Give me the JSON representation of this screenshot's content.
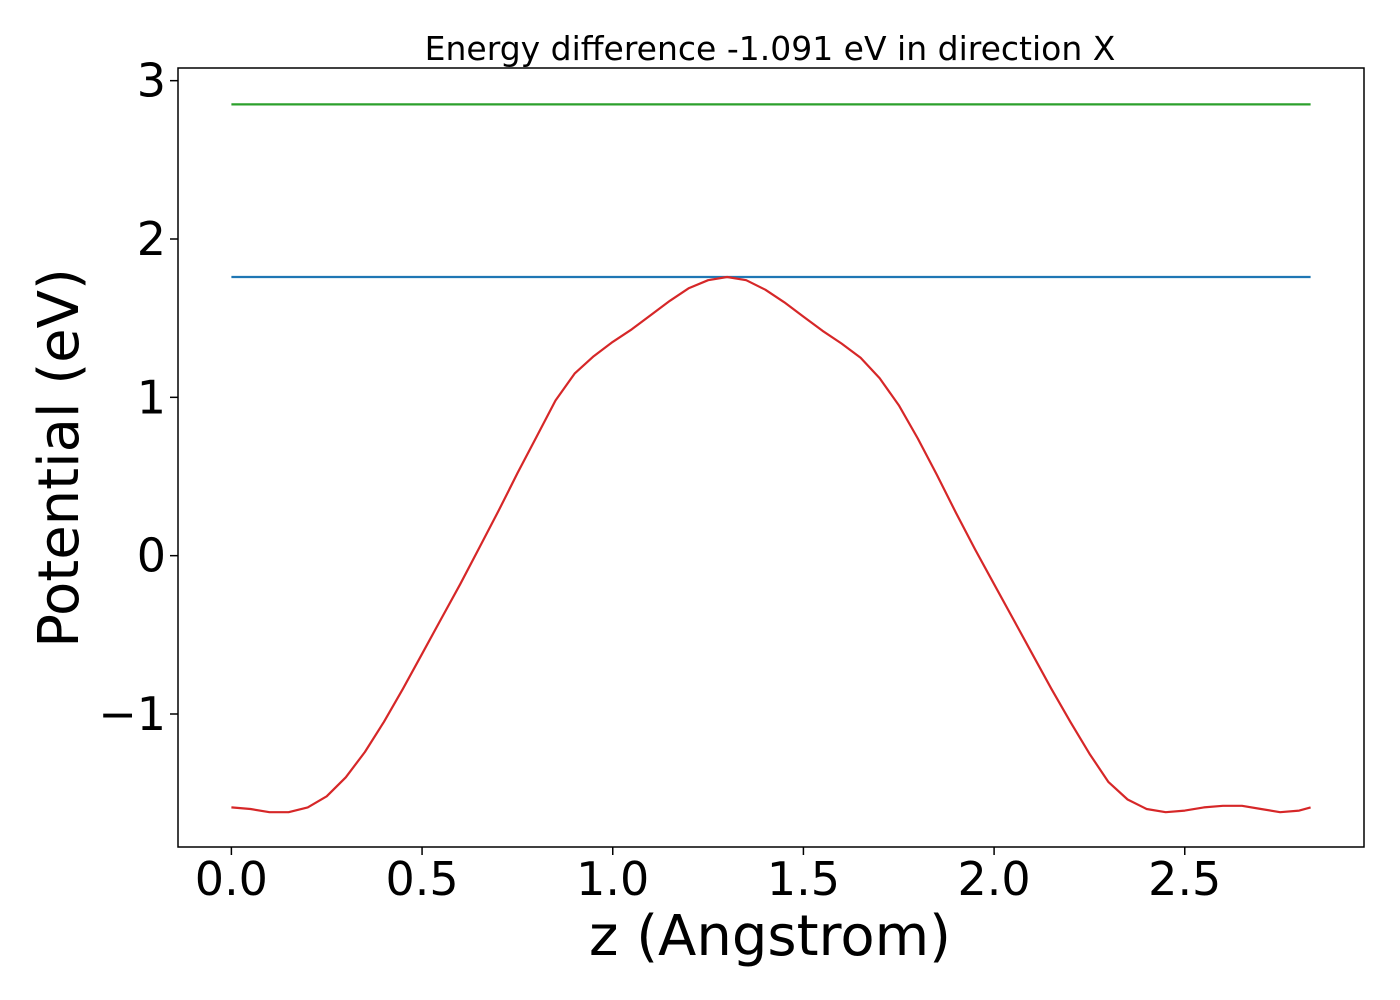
{
  "chart_data": {
    "type": "line",
    "title": "Energy difference -1.091 eV in direction X",
    "xlabel": "z (Angstrom)",
    "ylabel": "Potential (eV)",
    "xlim": [
      -0.14,
      2.97
    ],
    "ylim": [
      -1.84,
      3.08
    ],
    "xticks": [
      0.0,
      0.5,
      1.0,
      1.5,
      2.0,
      2.5
    ],
    "xtick_labels": [
      "0.0",
      "0.5",
      "1.0",
      "1.5",
      "2.0",
      "2.5"
    ],
    "yticks": [
      -1,
      0,
      1,
      2,
      3
    ],
    "ytick_labels": [
      "−1",
      "0",
      "1",
      "2",
      "3"
    ],
    "grid": false,
    "legend": "none",
    "series": [
      {
        "color": "#d62728",
        "x": [
          0.0,
          0.05,
          0.1,
          0.15,
          0.2,
          0.25,
          0.3,
          0.35,
          0.4,
          0.45,
          0.5,
          0.55,
          0.6,
          0.65,
          0.7,
          0.75,
          0.8,
          0.85,
          0.9,
          0.95,
          1.0,
          1.05,
          1.1,
          1.15,
          1.2,
          1.25,
          1.3,
          1.35,
          1.4,
          1.45,
          1.5,
          1.55,
          1.6,
          1.65,
          1.7,
          1.75,
          1.8,
          1.85,
          1.9,
          1.95,
          2.0,
          2.05,
          2.1,
          2.15,
          2.2,
          2.25,
          2.3,
          2.35,
          2.4,
          2.45,
          2.5,
          2.55,
          2.6,
          2.65,
          2.7,
          2.75,
          2.8,
          2.83
        ],
        "values": [
          -1.59,
          -1.6,
          -1.62,
          -1.62,
          -1.59,
          -1.52,
          -1.4,
          -1.24,
          -1.05,
          -0.84,
          -0.62,
          -0.4,
          -0.18,
          0.05,
          0.28,
          0.52,
          0.75,
          0.98,
          1.15,
          1.26,
          1.35,
          1.43,
          1.52,
          1.61,
          1.69,
          1.74,
          1.76,
          1.74,
          1.68,
          1.6,
          1.51,
          1.42,
          1.34,
          1.25,
          1.12,
          0.95,
          0.74,
          0.51,
          0.27,
          0.04,
          -0.18,
          -0.4,
          -0.62,
          -0.84,
          -1.05,
          -1.25,
          -1.43,
          -1.54,
          -1.6,
          -1.62,
          -1.61,
          -1.59,
          -1.58,
          -1.58,
          -1.6,
          -1.62,
          -1.61,
          -1.59
        ]
      },
      {
        "color": "#1f77b4",
        "x": [
          0.0,
          2.83
        ],
        "values": [
          1.76,
          1.76
        ]
      },
      {
        "color": "#2ca02c",
        "x": [
          0.0,
          2.83
        ],
        "values": [
          2.85,
          2.85
        ]
      }
    ]
  }
}
